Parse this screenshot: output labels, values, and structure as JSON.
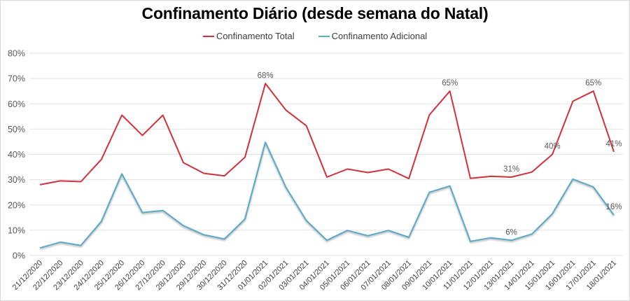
{
  "chart_data": {
    "type": "line",
    "title": "Confinamento Diário (desde semana do Natal)",
    "xlabel": "",
    "ylabel": "",
    "ylim": [
      0,
      80
    ],
    "y_ticks": [
      "0%",
      "10%",
      "20%",
      "30%",
      "40%",
      "50%",
      "60%",
      "70%",
      "80%"
    ],
    "y_tick_values": [
      0,
      10,
      20,
      30,
      40,
      50,
      60,
      70,
      80
    ],
    "grid": true,
    "legend_position": "top-center",
    "categories": [
      "21/12/2020",
      "22/12/2020",
      "23/12/2020",
      "24/12/2020",
      "25/12/2020",
      "26/12/2020",
      "27/12/2020",
      "28/12/2020",
      "29/12/2020",
      "30/12/2020",
      "31/12/2020",
      "01/01/2021",
      "02/01/2021",
      "03/01/2021",
      "04/01/2021",
      "05/01/2021",
      "06/01/2021",
      "07/01/2021",
      "08/01/2021",
      "09/01/2021",
      "10/01/2021",
      "11/01/2021",
      "12/01/2021",
      "13/01/2021",
      "14/01/2021",
      "15/01/2021",
      "16/01/2021",
      "17/01/2021",
      "18/01/2021"
    ],
    "series": [
      {
        "name": "Confinamento Total",
        "color": "#d0313d",
        "values": [
          28,
          29.5,
          29.2,
          38,
          55.5,
          47.5,
          55.5,
          36.7,
          32.5,
          31.5,
          38.8,
          68,
          57.5,
          51.3,
          31,
          34.2,
          32.8,
          34.2,
          30.4,
          55.6,
          65,
          30.5,
          31.3,
          31,
          33,
          40,
          61,
          65,
          41
        ],
        "data_labels": [
          {
            "index": 11,
            "text": "68%"
          },
          {
            "index": 20,
            "text": "65%"
          },
          {
            "index": 23,
            "text": "31%"
          },
          {
            "index": 25,
            "text": "40%"
          },
          {
            "index": 27,
            "text": "65%"
          },
          {
            "index": 28,
            "text": "41%"
          }
        ]
      },
      {
        "name": "Confinamento Adicional",
        "color": "#5aa9c6",
        "values": [
          3,
          5.3,
          4,
          13.5,
          32.3,
          17,
          17.8,
          11.8,
          8.2,
          6.5,
          14.4,
          44.8,
          27,
          13.8,
          6,
          9.9,
          7.8,
          9.9,
          7.2,
          25,
          27.5,
          5.6,
          7,
          6,
          8.5,
          16.5,
          30.2,
          27.1,
          16
        ],
        "data_labels": [
          {
            "index": 23,
            "text": "6%"
          },
          {
            "index": 28,
            "text": "16%"
          }
        ]
      }
    ]
  }
}
